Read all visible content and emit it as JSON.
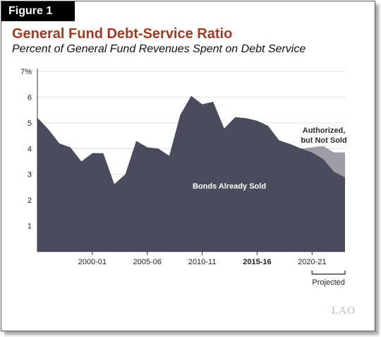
{
  "figure_label": "Figure 1",
  "chart_data": {
    "type": "area",
    "title": "General Fund Debt-Service Ratio",
    "subtitle": "Percent of General Fund Revenues Spent on Debt Service",
    "x": [
      1995,
      1996,
      1997,
      1998,
      1999,
      2000,
      2001,
      2002,
      2003,
      2004,
      2005,
      2006,
      2007,
      2008,
      2009,
      2010,
      2011,
      2012,
      2013,
      2014,
      2015,
      2016,
      2017,
      2018,
      2019,
      2020,
      2021,
      2022,
      2023
    ],
    "xlim": [
      1995,
      2023
    ],
    "ylim": [
      0,
      7
    ],
    "ytick_values": [
      1,
      2,
      3,
      4,
      5,
      6,
      7
    ],
    "ytick_labels": [
      "1",
      "2",
      "3",
      "4",
      "5",
      "6",
      "7%"
    ],
    "xtick_values": [
      2000,
      2005,
      2010,
      2015,
      2020
    ],
    "xtick_labels": [
      "2000-01",
      "2005-06",
      "2010-11",
      "2015-16",
      "2020-21"
    ],
    "bold_xticks": [
      2015
    ],
    "series": [
      {
        "name": "Bonds Already Sold",
        "color": "#4a4b5c",
        "values": [
          5.2,
          4.75,
          4.2,
          4.05,
          3.5,
          3.82,
          3.82,
          2.62,
          3.0,
          4.3,
          4.05,
          4.0,
          3.72,
          5.3,
          6.05,
          5.72,
          5.82,
          4.78,
          5.22,
          5.18,
          5.08,
          4.88,
          4.32,
          4.18,
          4.0,
          3.85,
          3.6,
          3.1,
          2.88
        ]
      },
      {
        "name": "Authorized, but Not Sold",
        "color": "#9d9ca4",
        "values": [
          0,
          0,
          0,
          0,
          0,
          0,
          0,
          0,
          0,
          0,
          0,
          0,
          0,
          0,
          0,
          0,
          0,
          0,
          0,
          0,
          0,
          0,
          0,
          0,
          0,
          0.2,
          0.5,
          0.75,
          0.97
        ]
      }
    ],
    "annotations": {
      "sold_label": "Bonds Already Sold",
      "authorized_line1": "Authorized,",
      "authorized_line2": "but Not Sold",
      "projected": "Projected",
      "projected_range": [
        2020,
        2023
      ]
    },
    "grid": true
  },
  "logo_text": "LAO"
}
